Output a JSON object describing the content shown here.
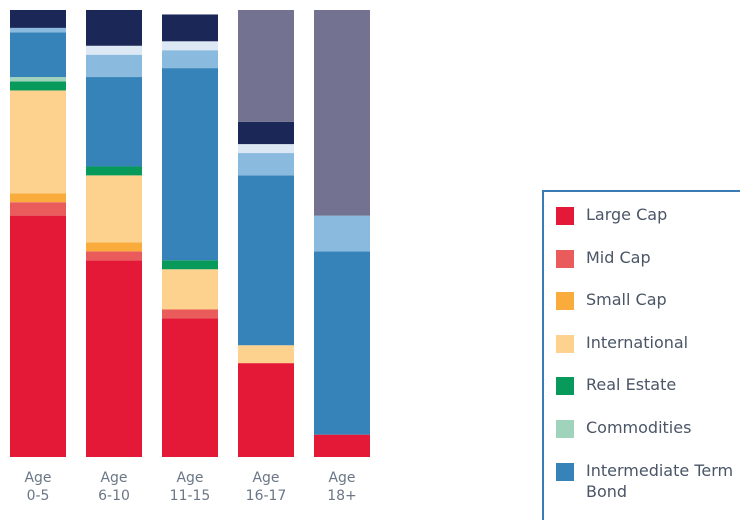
{
  "chart_data": {
    "type": "bar",
    "stacked": true,
    "percent": true,
    "categories": [
      "Age\n0-5",
      "Age\n6-10",
      "Age\n11-15",
      "Age\n16-17",
      "Age\n18+"
    ],
    "series": [
      {
        "name": "Large Cap",
        "color": "#e31937",
        "values": [
          54,
          44,
          31,
          21,
          5
        ]
      },
      {
        "name": "Mid Cap",
        "color": "#ea5b5b",
        "values": [
          3,
          2,
          2,
          0,
          0
        ]
      },
      {
        "name": "Small Cap",
        "color": "#f9ac3b",
        "values": [
          2,
          2,
          0,
          0,
          0
        ]
      },
      {
        "name": "International",
        "color": "#fdd28f",
        "values": [
          23,
          15,
          9,
          4,
          0
        ]
      },
      {
        "name": "Real Estate",
        "color": "#079a5a",
        "values": [
          2,
          2,
          2,
          0,
          0
        ]
      },
      {
        "name": "Commodities",
        "color": "#9fd3bb",
        "values": [
          1,
          0,
          0,
          0,
          0
        ]
      },
      {
        "name": "Intermediate Term Bond",
        "color": "#3583b8",
        "values": [
          10,
          20,
          43,
          38,
          41
        ]
      },
      {
        "name": "",
        "color": "#8bbadf",
        "values": [
          1,
          5,
          4,
          5,
          8
        ]
      },
      {
        "name": "",
        "color": "#dce9f4",
        "values": [
          0,
          2,
          2,
          2,
          0
        ]
      },
      {
        "name": "",
        "color": "#1b2756",
        "values": [
          4,
          8,
          6,
          5,
          0
        ]
      },
      {
        "name": "",
        "color": "#737290",
        "values": [
          0,
          0,
          0,
          25,
          46
        ]
      }
    ],
    "ylim": [
      0,
      100
    ],
    "legend_position": "right"
  },
  "legend": {
    "items": [
      {
        "label": "Large Cap",
        "color": "#e31937"
      },
      {
        "label": "Mid Cap",
        "color": "#ea5b5b"
      },
      {
        "label": "Small Cap",
        "color": "#f9ac3b"
      },
      {
        "label": "International",
        "color": "#fdd28f"
      },
      {
        "label": "Real Estate",
        "color": "#079a5a"
      },
      {
        "label": "Commodities",
        "color": "#9fd3bb"
      },
      {
        "label": "Intermediate Term Bond",
        "color": "#3583b8"
      }
    ]
  }
}
